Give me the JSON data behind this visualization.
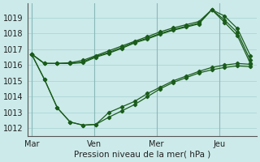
{
  "title": "",
  "xlabel": "Pression niveau de la mer( hPa )",
  "ylabel": "",
  "bg_color": "#cceaea",
  "grid_color": "#b0d8d8",
  "line_color": "#1a5c1a",
  "ylim": [
    1011.5,
    1019.9
  ],
  "xlim": [
    -0.2,
    10.8
  ],
  "xtick_labels": [
    "Mar",
    "Ven",
    "Mer",
    "Jeu"
  ],
  "xtick_positions": [
    0,
    3,
    6,
    9
  ],
  "ytick_positions": [
    1012,
    1013,
    1014,
    1015,
    1016,
    1017,
    1018,
    1019
  ],
  "line_upper1": [
    1016.7,
    1016.1,
    1016.1,
    1016.15,
    1016.3,
    1016.6,
    1016.9,
    1017.2,
    1017.5,
    1017.8,
    1018.1,
    1018.35,
    1018.55,
    1018.75,
    1019.5,
    1019.1,
    1018.3,
    1016.6
  ],
  "line_upper2": [
    1016.7,
    1016.1,
    1016.1,
    1016.1,
    1016.2,
    1016.55,
    1016.8,
    1017.1,
    1017.45,
    1017.7,
    1018.0,
    1018.25,
    1018.45,
    1018.65,
    1019.5,
    1018.85,
    1018.05,
    1016.3
  ],
  "line_upper3": [
    1016.7,
    1016.1,
    1016.1,
    1016.1,
    1016.15,
    1016.5,
    1016.75,
    1017.05,
    1017.4,
    1017.65,
    1017.95,
    1018.2,
    1018.4,
    1018.6,
    1019.5,
    1018.7,
    1017.85,
    1016.1
  ],
  "line_lower1": [
    1016.7,
    1015.1,
    1013.3,
    1012.4,
    1012.2,
    1012.25,
    1012.7,
    1013.1,
    1013.5,
    1014.0,
    1014.5,
    1014.9,
    1015.2,
    1015.5,
    1015.7,
    1015.85,
    1015.95,
    1015.9
  ],
  "line_lower2": [
    1016.7,
    1015.1,
    1013.3,
    1012.4,
    1012.2,
    1012.25,
    1013.0,
    1013.35,
    1013.7,
    1014.2,
    1014.6,
    1015.0,
    1015.3,
    1015.6,
    1015.85,
    1016.0,
    1016.1,
    1016.05
  ],
  "n_upper": 18,
  "n_lower": 18
}
